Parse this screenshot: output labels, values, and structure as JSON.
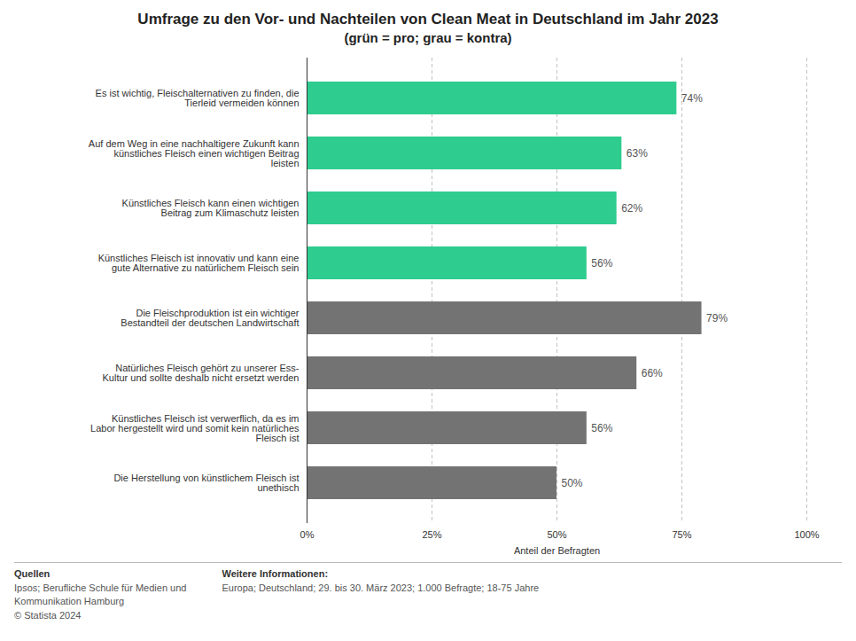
{
  "chart_data": {
    "type": "bar",
    "orientation": "horizontal",
    "title": "Umfrage zu den Vor- und Nachteilen von Clean Meat in Deutschland im Jahr 2023",
    "subtitle": "(grün = pro; grau = kontra)",
    "categories": [
      "Es ist wichtig, Fleischalternativen zu finden, die\nTierleid vermeiden können",
      "Auf dem Weg in eine nachhaltigere Zukunft kann\nkünstliches Fleisch einen wichtigen Beitrag\nleisten",
      "Künstliches Fleisch kann einen wichtigen\nBeitrag zum Klimaschutz leisten",
      "Künstliches Fleisch ist innovativ und kann eine\ngute Alternative zu natürlichem Fleisch sein",
      "Die Fleischproduktion ist ein wichtiger\nBestandteil der deutschen Landwirtschaft",
      "Natürliches Fleisch gehört zu unserer Ess-\nKultur und sollte deshalb nicht ersetzt werden",
      "Künstliches Fleisch ist verwerflich, da es im\nLabor hergestellt wird und somit kein natürliches\nFleisch ist",
      "Die Herstellung von künstlichem Fleisch ist\nunethisch"
    ],
    "values": [
      74,
      63,
      62,
      56,
      79,
      66,
      56,
      50
    ],
    "value_labels": [
      "74%",
      "63%",
      "62%",
      "56%",
      "79%",
      "66%",
      "56%",
      "50%"
    ],
    "data_labels": true,
    "colors": [
      "#2ecc8e",
      "#2ecc8e",
      "#2ecc8e",
      "#2ecc8e",
      "#737373",
      "#737373",
      "#737373",
      "#737373"
    ],
    "xlabel": "Anteil der Befragten",
    "xlim": [
      0,
      100
    ],
    "xticks": [
      {
        "value": 0,
        "label": "0%"
      },
      {
        "value": 25,
        "label": "25%"
      },
      {
        "value": 50,
        "label": "50%"
      },
      {
        "value": 75,
        "label": "75%"
      },
      {
        "value": 100,
        "label": "100%"
      }
    ],
    "grid": true,
    "annotations": [
      "Quellen",
      "Ipsos; Berufliche Schule für Medien und\nKommunikation Hamburg\n© Statista 2024",
      "Weitere Informationen:",
      "Europa; Deutschland; 29. bis 30. März 2023; 1.000 Befragte; 18-75 Jahre"
    ]
  }
}
